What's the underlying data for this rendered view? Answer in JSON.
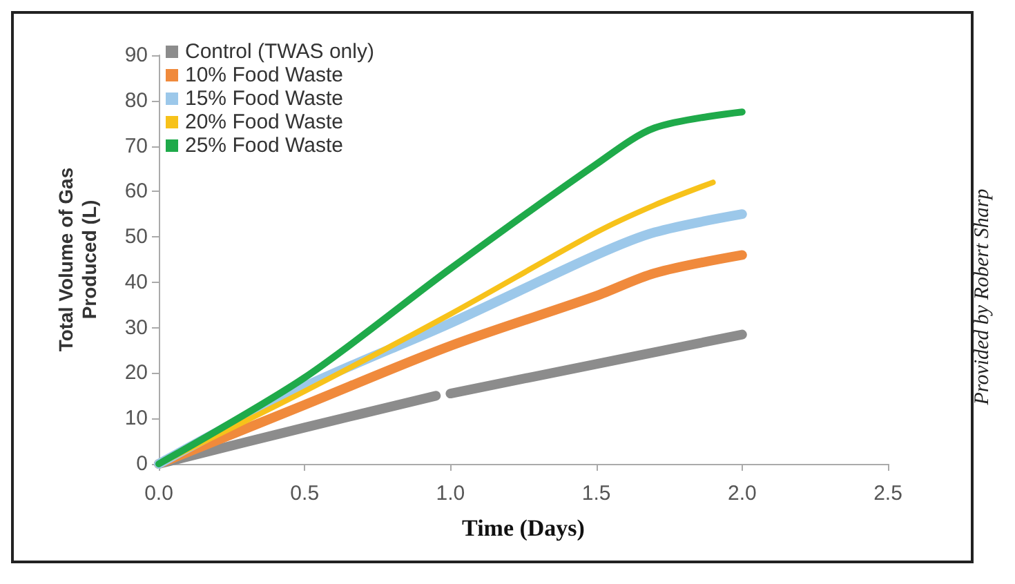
{
  "chart_data": {
    "type": "line",
    "xlabel": "Time (Days)",
    "ylabel": "Total Volume of Gas\nProduced (L)",
    "annotations": [
      "Provided by Robert Sharp"
    ],
    "xlim": [
      0,
      2.5
    ],
    "xticks": [
      {
        "value": 0,
        "label": "0.0"
      },
      {
        "value": 0.5,
        "label": "0.5"
      },
      {
        "value": 1,
        "label": "1.0"
      },
      {
        "value": 1.5,
        "label": "1.5"
      },
      {
        "value": 2,
        "label": "2.0"
      },
      {
        "value": 2.5,
        "label": "2.5"
      }
    ],
    "ylim": [
      0,
      90
    ],
    "yticks": [
      0,
      10,
      20,
      30,
      40,
      50,
      60,
      70,
      80,
      90
    ],
    "grid": false,
    "legend": "top left",
    "line_style": "solid",
    "series": [
      {
        "name": "Control (TWAS only)",
        "color": "#8c8c8c",
        "x": [
          0,
          0.5,
          0.95,
          0.98,
          1.0,
          1.5,
          2.0
        ],
        "values": [
          0,
          8,
          15,
          null,
          15.5,
          22,
          28.5
        ]
      },
      {
        "name": "10% Food Waste",
        "color": "#f08a3c",
        "x": [
          0,
          0.5,
          1.0,
          1.5,
          1.7,
          2.0
        ],
        "values": [
          0,
          13,
          26,
          37,
          42,
          46
        ]
      },
      {
        "name": "15% Food Waste",
        "color": "#9cc8ea",
        "x": [
          0,
          0.5,
          1.0,
          1.5,
          1.7,
          2.0
        ],
        "values": [
          0,
          17,
          31,
          46,
          51,
          55
        ]
      },
      {
        "name": "20% Food Waste",
        "color": "#f7c21a",
        "x": [
          0,
          0.5,
          1.0,
          1.5,
          1.7,
          1.9
        ],
        "values": [
          0,
          16,
          33,
          51,
          57,
          62
        ]
      },
      {
        "name": "25% Food Waste",
        "color": "#1faa4a",
        "x": [
          0,
          0.5,
          1.0,
          1.5,
          1.7,
          2.0
        ],
        "values": [
          0,
          19,
          43,
          66,
          74,
          77.5
        ]
      }
    ]
  }
}
